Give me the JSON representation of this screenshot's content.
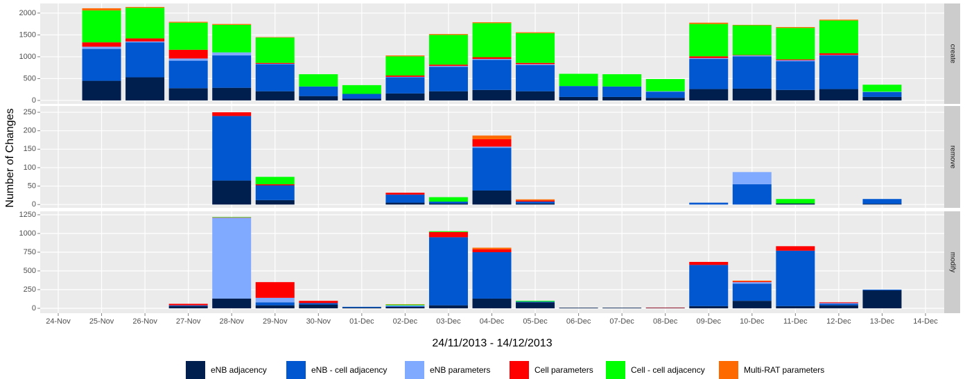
{
  "chart_data": {
    "type": "bar",
    "stacked": true,
    "y_label": "Number of Changes",
    "x_label": "24/11/2013 - 14/12/2013",
    "grid": true,
    "categories": [
      "24-Nov",
      "25-Nov",
      "26-Nov",
      "27-Nov",
      "28-Nov",
      "29-Nov",
      "30-Nov",
      "01-Dec",
      "02-Dec",
      "03-Dec",
      "04-Dec",
      "05-Dec",
      "06-Dec",
      "07-Dec",
      "08-Dec",
      "09-Dec",
      "10-Dec",
      "11-Dec",
      "12-Dec",
      "13-Dec",
      "14-Dec"
    ],
    "series": [
      {
        "name": "eNB adjacency",
        "color": "#001f4f"
      },
      {
        "name": "eNB - cell adjacency",
        "color": "#0057d0"
      },
      {
        "name": "eNB parameters",
        "color": "#80aaff"
      },
      {
        "name": "Cell parameters",
        "color": "#ff0000"
      },
      {
        "name": "Cell - cell adjacency",
        "color": "#00ff00"
      },
      {
        "name": "Multi-RAT parameters",
        "color": "#ff6a00"
      }
    ],
    "facets": [
      {
        "label": "create",
        "ylim": [
          -80,
          2220
        ],
        "yticks": [
          0,
          500,
          1000,
          1500,
          2000
        ],
        "series": [
          {
            "values": [
              0,
              450,
              530,
              280,
              290,
              210,
              100,
              40,
              160,
              210,
              240,
              210,
              80,
              80,
              60,
              260,
              270,
              240,
              260,
              80,
              0
            ]
          },
          {
            "values": [
              0,
              730,
              800,
              630,
              740,
              620,
              220,
              110,
              370,
              560,
              690,
              600,
              250,
              240,
              140,
              690,
              740,
              660,
              770,
              110,
              0
            ]
          },
          {
            "values": [
              0,
              50,
              20,
              50,
              70,
              10,
              0,
              0,
              10,
              20,
              20,
              20,
              0,
              0,
              10,
              20,
              20,
              20,
              10,
              10,
              0
            ]
          },
          {
            "values": [
              0,
              100,
              70,
              200,
              0,
              20,
              0,
              0,
              30,
              30,
              40,
              30,
              0,
              0,
              0,
              40,
              10,
              20,
              40,
              0,
              0
            ]
          },
          {
            "values": [
              0,
              730,
              700,
              620,
              630,
              580,
              280,
              200,
              440,
              680,
              780,
              680,
              280,
              280,
              280,
              740,
              680,
              720,
              750,
              160,
              0
            ]
          },
          {
            "values": [
              0,
              50,
              20,
              20,
              20,
              10,
              0,
              0,
              20,
              20,
              20,
              20,
              0,
              0,
              0,
              30,
              10,
              20,
              20,
              0,
              0
            ]
          }
        ]
      },
      {
        "label": "remove",
        "ylim": [
          -9,
          267
        ],
        "yticks": [
          0,
          50,
          100,
          150,
          200,
          250
        ],
        "series": [
          {
            "values": [
              0,
              0,
              0,
              0,
              65,
              12,
              0,
              0,
              5,
              3,
              38,
              3,
              0,
              0,
              0,
              0,
              0,
              3,
              0,
              2,
              0
            ]
          },
          {
            "values": [
              0,
              0,
              0,
              0,
              175,
              40,
              0,
              0,
              22,
              5,
              116,
              5,
              0,
              0,
              0,
              5,
              55,
              0,
              0,
              13,
              0
            ]
          },
          {
            "values": [
              0,
              0,
              0,
              0,
              0,
              0,
              0,
              0,
              0,
              0,
              3,
              0,
              0,
              0,
              0,
              0,
              33,
              0,
              0,
              0,
              0
            ]
          },
          {
            "values": [
              0,
              0,
              0,
              0,
              10,
              3,
              0,
              0,
              5,
              0,
              20,
              3,
              0,
              0,
              0,
              0,
              0,
              0,
              0,
              0,
              0
            ]
          },
          {
            "values": [
              0,
              0,
              0,
              0,
              0,
              20,
              0,
              0,
              0,
              12,
              0,
              0,
              0,
              0,
              0,
              0,
              0,
              12,
              0,
              0,
              0
            ]
          },
          {
            "values": [
              0,
              0,
              0,
              0,
              0,
              0,
              0,
              0,
              0,
              0,
              10,
              3,
              0,
              0,
              0,
              0,
              0,
              0,
              0,
              0,
              0
            ]
          }
        ]
      },
      {
        "label": "modify",
        "ylim": [
          -65,
          1296
        ],
        "yticks": [
          0,
          250,
          500,
          750,
          1000,
          1250
        ],
        "series": [
          {
            "values": [
              0,
              0,
              0,
              30,
              130,
              40,
              50,
              10,
              20,
              40,
              130,
              80,
              8,
              8,
              5,
              30,
              100,
              30,
              40,
              240,
              0
            ]
          },
          {
            "values": [
              0,
              0,
              0,
              10,
              0,
              40,
              20,
              10,
              10,
              910,
              620,
              10,
              0,
              0,
              0,
              550,
              230,
              740,
              20,
              10,
              0
            ]
          },
          {
            "values": [
              0,
              0,
              0,
              0,
              1080,
              60,
              0,
              0,
              10,
              0,
              0,
              0,
              0,
              0,
              0,
              0,
              20,
              0,
              10,
              0,
              0
            ]
          },
          {
            "values": [
              0,
              0,
              0,
              20,
              5,
              210,
              30,
              0,
              0,
              70,
              40,
              0,
              0,
              0,
              5,
              40,
              10,
              60,
              10,
              0,
              0
            ]
          },
          {
            "values": [
              0,
              0,
              0,
              0,
              5,
              0,
              0,
              0,
              10,
              10,
              0,
              10,
              0,
              0,
              0,
              0,
              0,
              0,
              0,
              0,
              0
            ]
          },
          {
            "values": [
              0,
              0,
              0,
              0,
              0,
              0,
              0,
              0,
              5,
              0,
              20,
              0,
              0,
              0,
              0,
              0,
              10,
              0,
              0,
              0,
              0
            ]
          }
        ]
      }
    ]
  }
}
